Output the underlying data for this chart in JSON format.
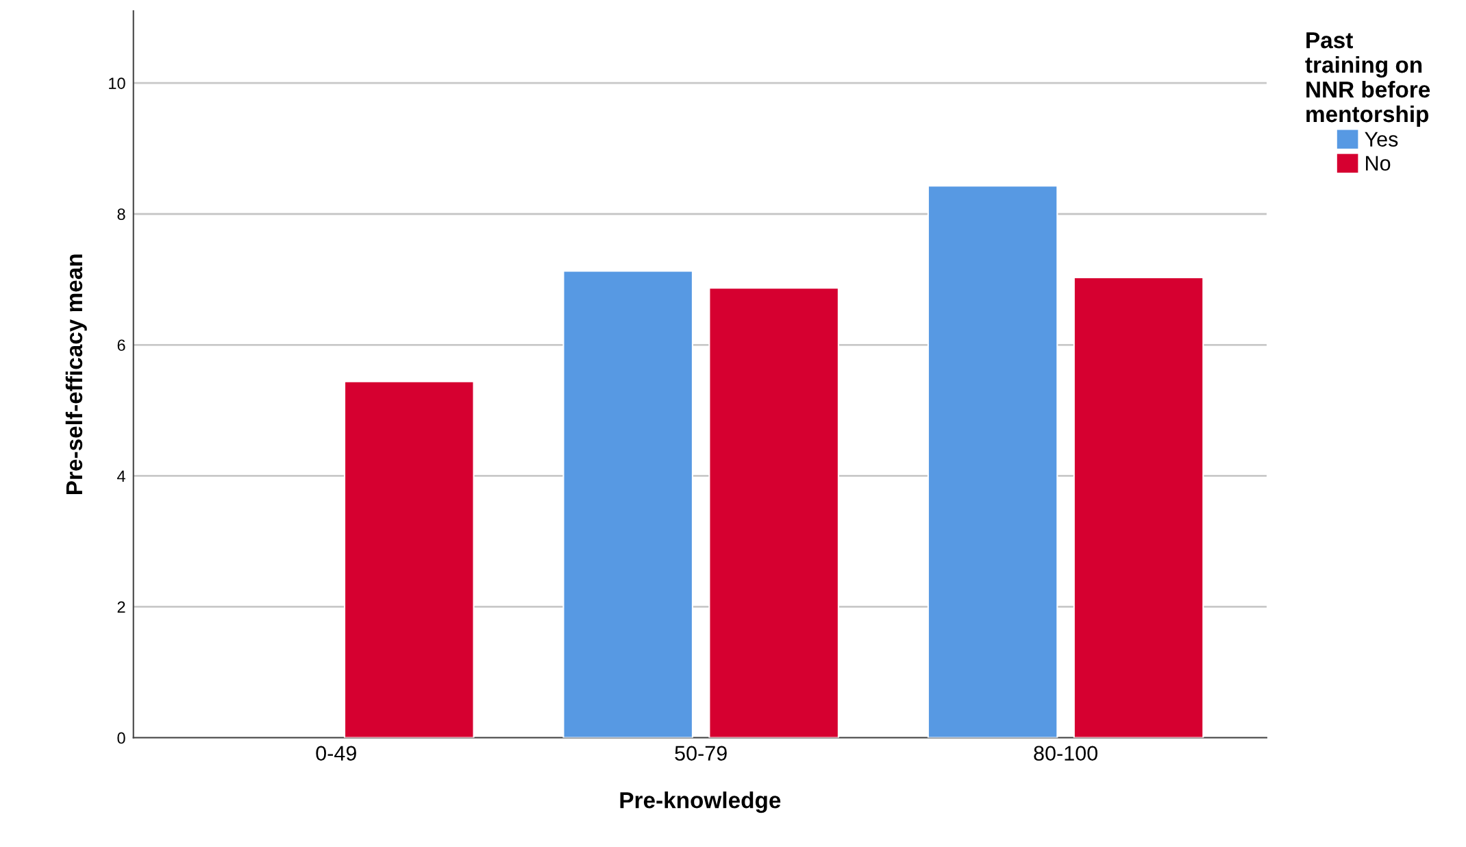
{
  "chart_data": {
    "type": "bar",
    "xlabel": "Pre-knowledge",
    "ylabel": "Pre-self-efficacy mean",
    "categories": [
      "0-49",
      "50-79",
      "80-100"
    ],
    "series": [
      {
        "name": "Yes",
        "color": "#5799e3",
        "values": [
          null,
          7.13,
          8.43
        ]
      },
      {
        "name": "No",
        "color": "#d60030",
        "values": [
          5.44,
          6.87,
          7.03
        ]
      }
    ],
    "ylim": [
      0,
      11.1
    ],
    "yticks": [
      0,
      2,
      4,
      6,
      8,
      10
    ],
    "grid": "y",
    "legend": "top right",
    "legend_title": "Past\ntraining on\nNNR before\nmentorship"
  }
}
